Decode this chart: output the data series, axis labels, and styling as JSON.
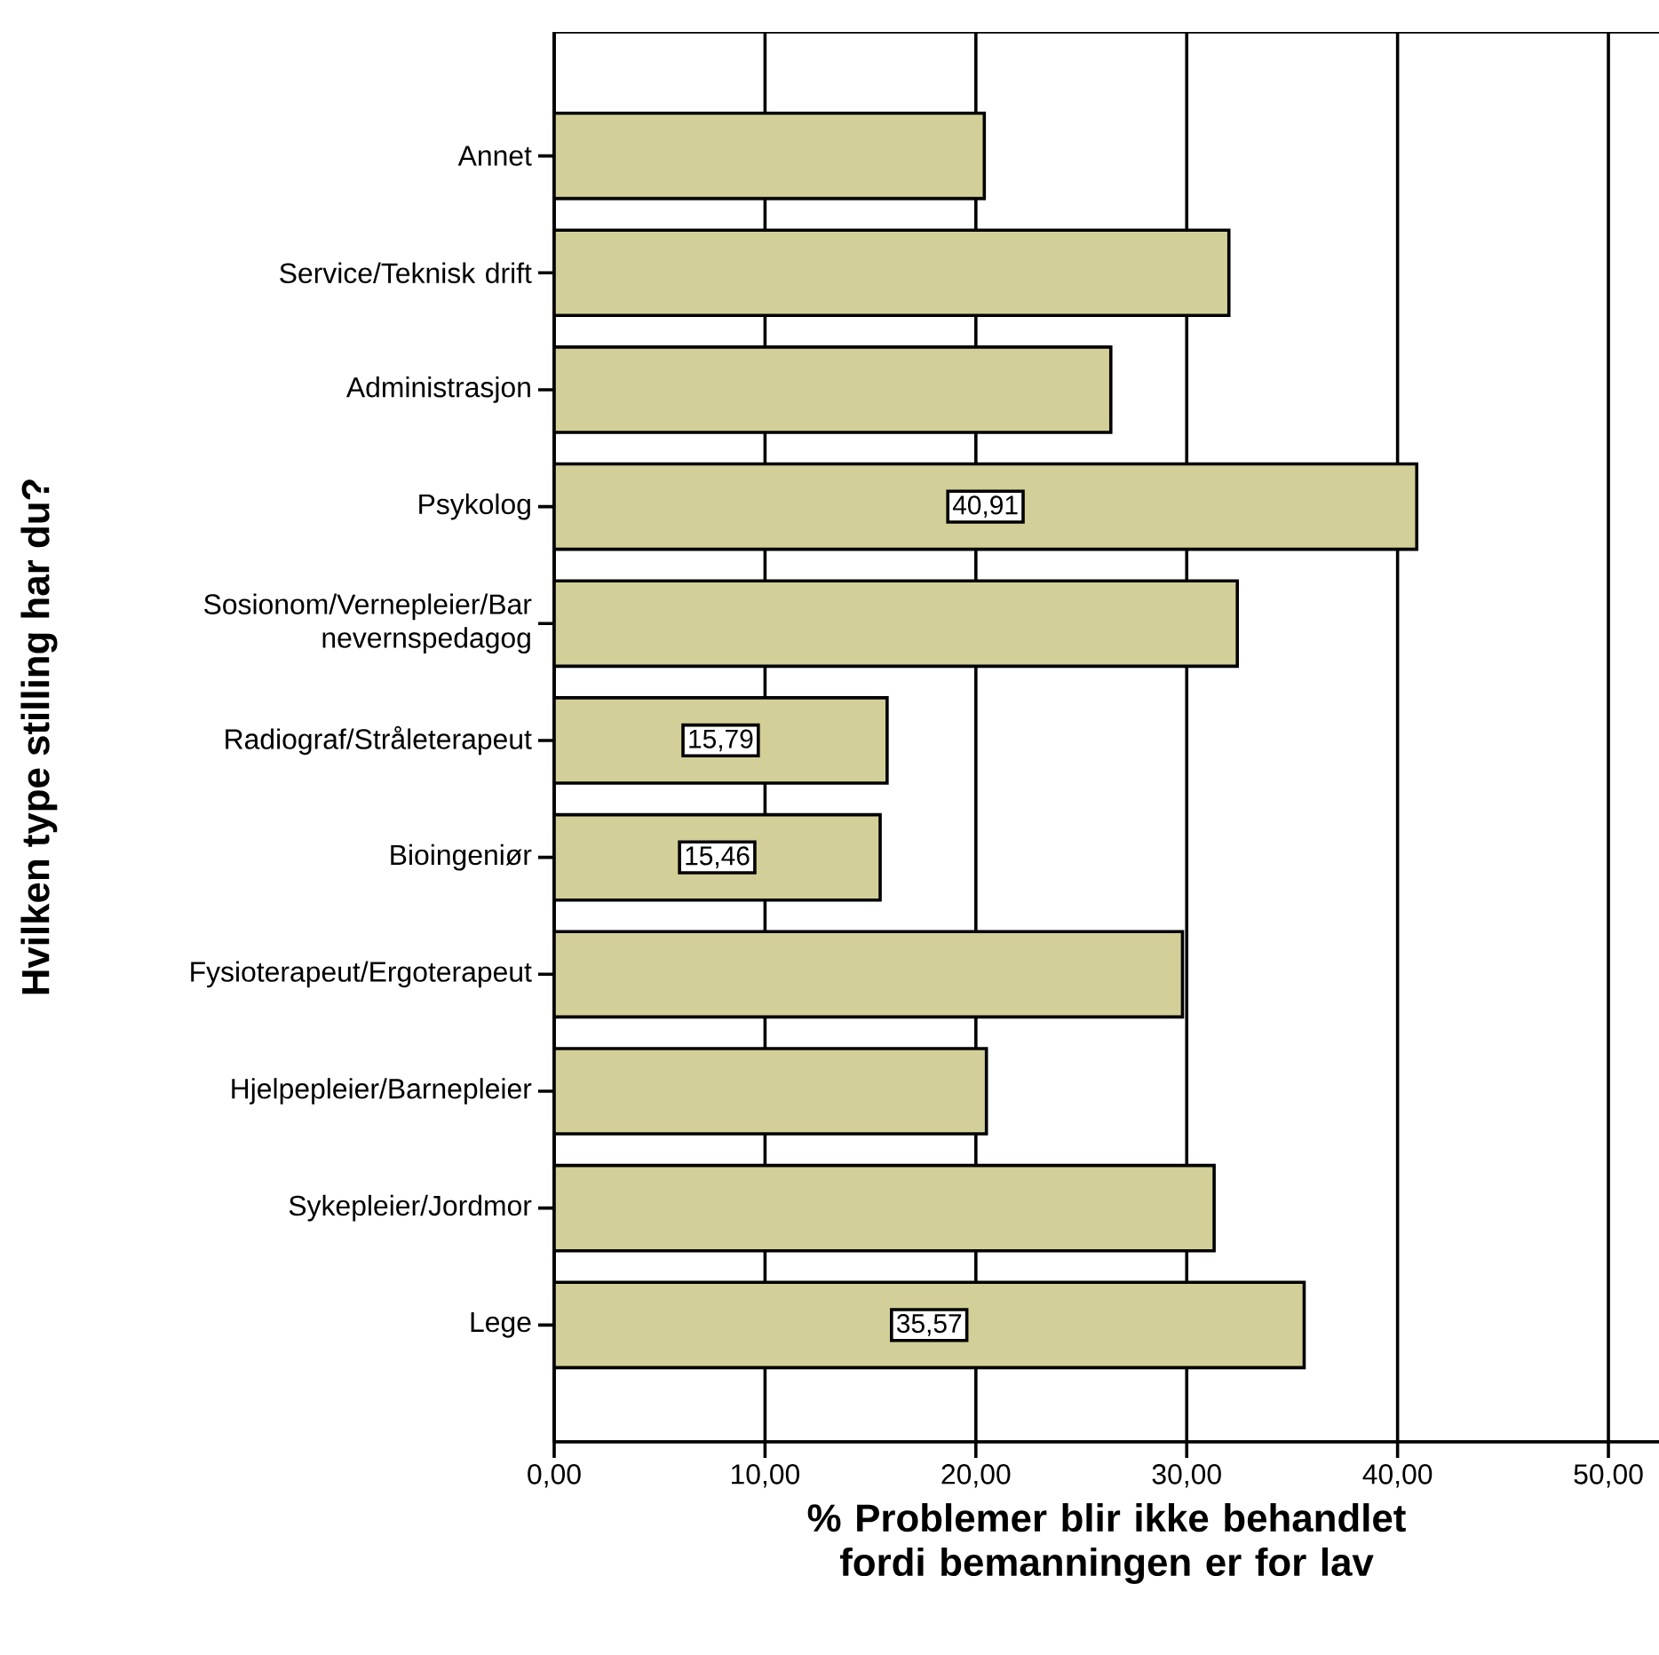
{
  "chart_data": {
    "type": "bar",
    "orientation": "horizontal",
    "xlabel": "% Problemer blir ikke behandlet fordi bemanningen er for lav",
    "ylabel": "Hvilken type stilling har du?",
    "categories": [
      "Annet",
      "Service/Teknisk drift",
      "Administrasjon",
      "Psykolog",
      "Sosionom/Vernepleier/Bar nevernspedagog",
      "Radiograf/Stråleterapeut",
      "Bioingeniør",
      "Fysioterapeut/Ergoterapeut",
      "Hjelpepleier/Barnepleier",
      "Sykepleier/Jordmor",
      "Lege"
    ],
    "values": [
      20.4,
      32.0,
      26.4,
      40.91,
      32.4,
      15.79,
      15.46,
      29.8,
      20.5,
      31.3,
      35.57
    ],
    "value_labels": [
      null,
      null,
      null,
      "40,91",
      null,
      "15,79",
      "15,46",
      null,
      null,
      null,
      "35,57"
    ],
    "color": "#d3cf98",
    "xlim": [
      0,
      52.4
    ],
    "xticks": [
      {
        "value": 0,
        "label": "0,00"
      },
      {
        "value": 10,
        "label": "10,00"
      },
      {
        "value": 20,
        "label": "20,00"
      },
      {
        "value": 30,
        "label": "30,00"
      },
      {
        "value": 40,
        "label": "40,00"
      },
      {
        "value": 50,
        "label": "50,00"
      }
    ],
    "grid": "x"
  }
}
